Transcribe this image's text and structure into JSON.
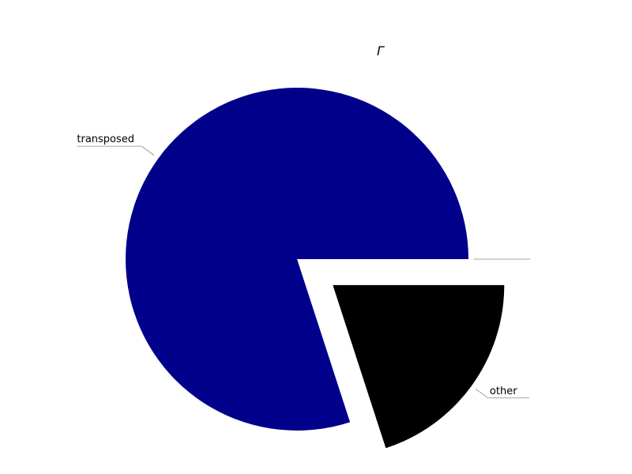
{
  "chart_data": {
    "type": "pie",
    "slices": [
      {
        "label": "transposed",
        "value": 80,
        "color": "#00008b",
        "exploded": false
      },
      {
        "label": "other",
        "value": 20,
        "color": "#000000",
        "exploded": true
      },
      {
        "label": "",
        "value": 0,
        "color": "#000000",
        "exploded": false
      }
    ],
    "annotation": "Γ",
    "legend": "none",
    "grid": false
  }
}
